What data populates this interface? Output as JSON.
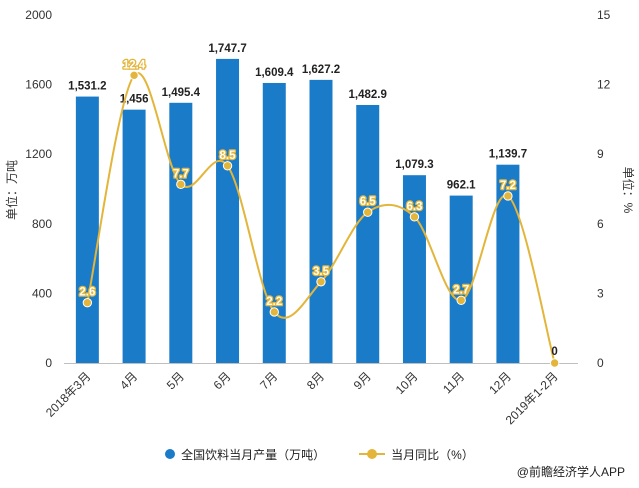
{
  "chart_data": {
    "type": "bar+line",
    "categories": [
      "2018年3月",
      "4月",
      "5月",
      "6月",
      "7月",
      "8月",
      "9月",
      "10月",
      "11月",
      "12月",
      "2019年1-2月"
    ],
    "series": [
      {
        "name": "全国饮料当月产量（万吨）",
        "type": "bar",
        "axis": "left",
        "values": [
          1531.2,
          1456,
          1495.4,
          1747.7,
          1609.4,
          1627.2,
          1482.9,
          1079.3,
          962.1,
          1139.7,
          null
        ],
        "labels": [
          "1,531.2",
          "1,456",
          "1,495.4",
          "1,747.7",
          "1,609.4",
          "1,627.2",
          "1,482.9",
          "1,079.3",
          "962.1",
          "1,139.7",
          ""
        ]
      },
      {
        "name": "当月同比（%）",
        "type": "line",
        "axis": "right",
        "values": [
          2.6,
          12.4,
          7.7,
          8.5,
          2.2,
          3.5,
          6.5,
          6.3,
          2.7,
          7.2,
          0
        ],
        "labels": [
          "2.6",
          "12.4",
          "7.7",
          "8.5",
          "2.2",
          "3.5",
          "6.5",
          "6.3",
          "2.7",
          "7.2",
          "0"
        ]
      }
    ],
    "y_left": {
      "label": "单位：万吨",
      "min": 0,
      "max": 2000,
      "ticks": [
        0,
        400,
        800,
        1200,
        1600,
        2000
      ]
    },
    "y_right": {
      "label": "单位：%",
      "min": 0,
      "max": 15,
      "ticks": [
        0,
        3,
        6,
        9,
        12,
        15
      ]
    },
    "grid": false,
    "legend_position": "bottom-center",
    "colors": {
      "bar": "#1a7bc9",
      "line": "#e3b53a"
    }
  },
  "legend": {
    "bar_label": "全国饮料当月产量（万吨）",
    "line_label": "当月同比（%）"
  },
  "source": "@前瞻经济学人APP"
}
